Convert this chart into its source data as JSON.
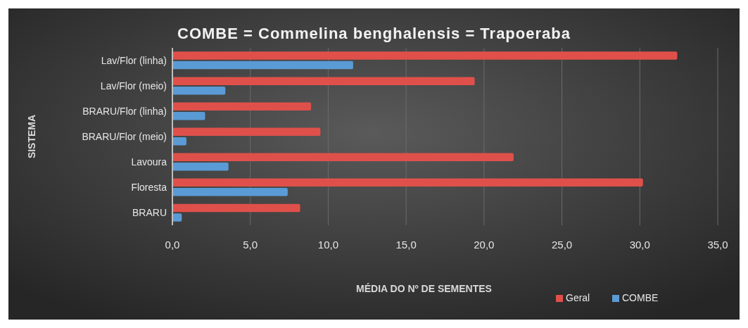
{
  "chart_data": {
    "type": "bar",
    "orientation": "horizontal",
    "title": "COMBE = Commelina benghalensis = Trapoeraba",
    "xlabel": "MÉDIA DO Nº DE SEMENTES",
    "ylabel": "SISTEMA",
    "categories": [
      "Lav/Flor (linha)",
      "Lav/Flor (meio)",
      "BRARU/Flor (linha)",
      "BRARU/Flor (meio)",
      "Lavoura",
      "Floresta",
      "BRARU"
    ],
    "series": [
      {
        "name": "Geral",
        "color": "#e0504a",
        "values": [
          32.4,
          19.4,
          8.9,
          9.5,
          21.9,
          30.2,
          8.2
        ]
      },
      {
        "name": "COMBE",
        "color": "#5b9bd5",
        "values": [
          11.6,
          3.4,
          2.1,
          0.9,
          3.6,
          7.4,
          0.6
        ]
      }
    ],
    "xlim": [
      0,
      35
    ],
    "xticks": [
      {
        "value": 0,
        "label": "0,0"
      },
      {
        "value": 5,
        "label": "5,0"
      },
      {
        "value": 10,
        "label": "10,0"
      },
      {
        "value": 15,
        "label": "15,0"
      },
      {
        "value": 20,
        "label": "20,0"
      },
      {
        "value": 25,
        "label": "25,0"
      },
      {
        "value": 30,
        "label": "30,0"
      },
      {
        "value": 35,
        "label": "35,0"
      }
    ],
    "grid": "x",
    "legend": "bottom right"
  }
}
